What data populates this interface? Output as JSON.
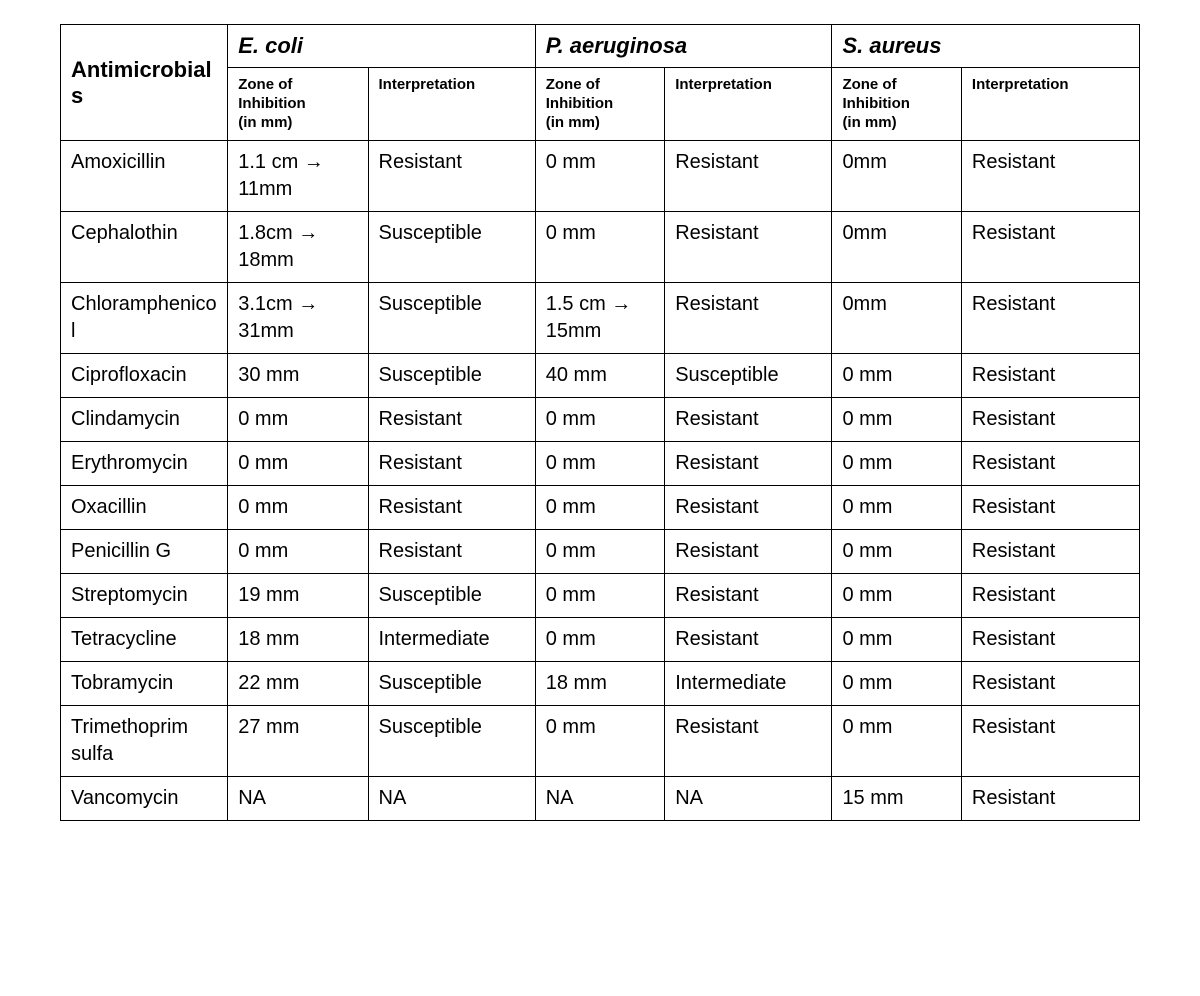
{
  "table": {
    "type": "table",
    "background_color": "#ffffff",
    "border_color": "#000000",
    "text_color": "#000000",
    "font_family": "Arial",
    "header": {
      "antimicrobials": "Antimicrobials",
      "organisms": [
        "E. coli",
        "P. aeruginosa",
        "S. aureus"
      ],
      "sub_zone": "Zone of\nInhibition\n(in mm)",
      "sub_interpretation": "Interpretation",
      "antimicrobials_fontsize": 22,
      "organism_fontsize": 22,
      "sub_fontsize": 15,
      "organism_font_style": "italic",
      "header_font_weight": 700
    },
    "body_fontsize": 20,
    "columns": [
      {
        "key": "name",
        "width_pct": 15.5
      },
      {
        "key": "ecoli_zone",
        "width_pct": 13
      },
      {
        "key": "ecoli_int",
        "width_pct": 15.5
      },
      {
        "key": "pa_zone",
        "width_pct": 12
      },
      {
        "key": "pa_int",
        "width_pct": 15.5
      },
      {
        "key": "sa_zone",
        "width_pct": 12
      },
      {
        "key": "sa_int",
        "width_pct": 16.5
      }
    ],
    "rows": [
      {
        "name": "Amoxicillin",
        "ecoli_zone": "1.1 cm → 11mm",
        "ecoli_int": "Resistant",
        "pa_zone": "0 mm",
        "pa_int": "Resistant",
        "sa_zone": "0mm",
        "sa_int": "Resistant"
      },
      {
        "name": "Cephalothin",
        "ecoli_zone": "1.8cm → 18mm",
        "ecoli_int": "Susceptible",
        "pa_zone": "0 mm",
        "pa_int": "Resistant",
        "sa_zone": "0mm",
        "sa_int": "Resistant"
      },
      {
        "name": "Chloramphenicol",
        "ecoli_zone": "3.1cm → 31mm",
        "ecoli_int": "Susceptible",
        "pa_zone": "1.5 cm → 15mm",
        "pa_int": "Resistant",
        "sa_zone": "0mm",
        "sa_int": "Resistant"
      },
      {
        "name": "Ciprofloxacin",
        "ecoli_zone": "30 mm",
        "ecoli_int": "Susceptible",
        "pa_zone": "40 mm",
        "pa_int": "Susceptible",
        "sa_zone": "0 mm",
        "sa_int": "Resistant"
      },
      {
        "name": "Clindamycin",
        "ecoli_zone": "0 mm",
        "ecoli_int": "Resistant",
        "pa_zone": "0 mm",
        "pa_int": "Resistant",
        "sa_zone": "0 mm",
        "sa_int": "Resistant"
      },
      {
        "name": "Erythromycin",
        "ecoli_zone": "0 mm",
        "ecoli_int": "Resistant",
        "pa_zone": "0 mm",
        "pa_int": "Resistant",
        "sa_zone": "0 mm",
        "sa_int": "Resistant"
      },
      {
        "name": "Oxacillin",
        "ecoli_zone": "0 mm",
        "ecoli_int": "Resistant",
        "pa_zone": "0 mm",
        "pa_int": "Resistant",
        "sa_zone": "0 mm",
        "sa_int": "Resistant"
      },
      {
        "name": "Penicillin G",
        "ecoli_zone": "0 mm",
        "ecoli_int": "Resistant",
        "pa_zone": "0 mm",
        "pa_int": "Resistant",
        "sa_zone": "0 mm",
        "sa_int": "Resistant"
      },
      {
        "name": "Streptomycin",
        "ecoli_zone": "19 mm",
        "ecoli_int": "Susceptible",
        "pa_zone": "0 mm",
        "pa_int": "Resistant",
        "sa_zone": "0 mm",
        "sa_int": "Resistant"
      },
      {
        "name": "Tetracycline",
        "ecoli_zone": "18 mm",
        "ecoli_int": "Intermediate",
        "pa_zone": "0 mm",
        "pa_int": "Resistant",
        "sa_zone": "0 mm",
        "sa_int": "Resistant"
      },
      {
        "name": "Tobramycin",
        "ecoli_zone": "22 mm",
        "ecoli_int": "Susceptible",
        "pa_zone": "18 mm",
        "pa_int": "Intermediate",
        "sa_zone": "0 mm",
        "sa_int": "Resistant"
      },
      {
        "name": "Trimethoprim sulfa",
        "ecoli_zone": "27 mm",
        "ecoli_int": "Susceptible",
        "pa_zone": "0 mm",
        "pa_int": "Resistant",
        "sa_zone": "0 mm",
        "sa_int": "Resistant"
      },
      {
        "name": "Vancomycin",
        "ecoli_zone": "NA",
        "ecoli_int": "NA",
        "pa_zone": "NA",
        "pa_int": "NA",
        "sa_zone": "15 mm",
        "sa_int": "Resistant"
      }
    ]
  }
}
